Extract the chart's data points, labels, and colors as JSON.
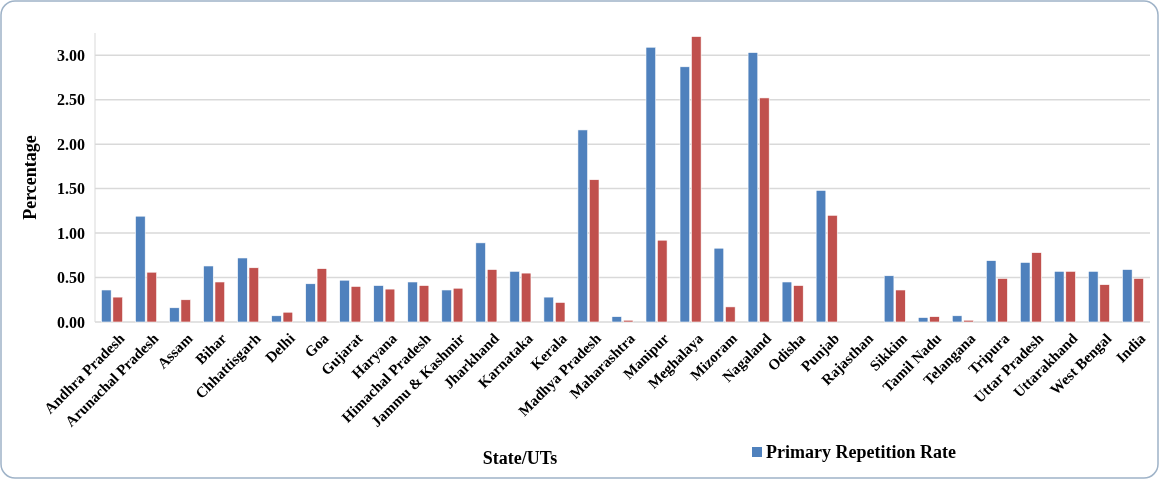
{
  "chart_data": {
    "type": "bar",
    "xlabel": "State/UTs",
    "ylabel": "Percentage",
    "categories": [
      "Andhra Pradesh",
      "Arunachal Pradesh",
      "Assam",
      "Bihar",
      "Chhattisgarh",
      "Delhi",
      "Goa",
      "Gujarat",
      "Haryana",
      "Himachal Pradesh",
      "Jammu & Kashmir",
      "Jharkhand",
      "Karnataka",
      "Kerala",
      "Madhya Pradesh",
      "Maharashtra",
      "Manipur",
      "Meghalaya",
      "Mizoram",
      "Nagaland",
      "Odisha",
      "Punjab",
      "Rajasthan",
      "Sikkim",
      "Tamil Nadu",
      "Telangana",
      "Tripura",
      "Uttar Pradesh",
      "Uttarakhand",
      "West Bengal",
      "India"
    ],
    "series": [
      {
        "name": "Primary Repetition Rate",
        "color": "#4f81bd",
        "values": [
          0.36,
          1.19,
          0.16,
          0.63,
          0.72,
          0.07,
          0.43,
          0.47,
          0.41,
          0.45,
          0.36,
          0.89,
          0.57,
          0.28,
          2.16,
          0.06,
          3.09,
          2.87,
          0.83,
          3.03,
          0.45,
          1.48,
          null,
          0.52,
          0.05,
          0.07,
          0.69,
          0.67,
          0.57,
          0.57,
          0.59
        ]
      },
      {
        "color": "#c0504d",
        "values": [
          0.28,
          0.56,
          0.25,
          0.45,
          0.61,
          0.11,
          0.6,
          0.4,
          0.37,
          0.41,
          0.38,
          0.59,
          0.55,
          0.22,
          1.6,
          0.02,
          0.92,
          3.21,
          0.17,
          2.52,
          0.41,
          1.2,
          null,
          0.36,
          0.06,
          0.02,
          0.49,
          0.78,
          0.57,
          0.42,
          0.49
        ]
      }
    ],
    "ylim": [
      0,
      3.25
    ],
    "yticks": [
      {
        "value": 0,
        "label": "0.00"
      },
      {
        "value": 0.5,
        "label": "0.50"
      },
      {
        "value": 1,
        "label": "1.00"
      },
      {
        "value": 1.5,
        "label": "1.50"
      },
      {
        "value": 2,
        "label": "2.00"
      },
      {
        "value": 2.5,
        "label": "2.50"
      },
      {
        "value": 3,
        "label": "3.00"
      }
    ],
    "grid": "y",
    "legend": "bottom right"
  }
}
